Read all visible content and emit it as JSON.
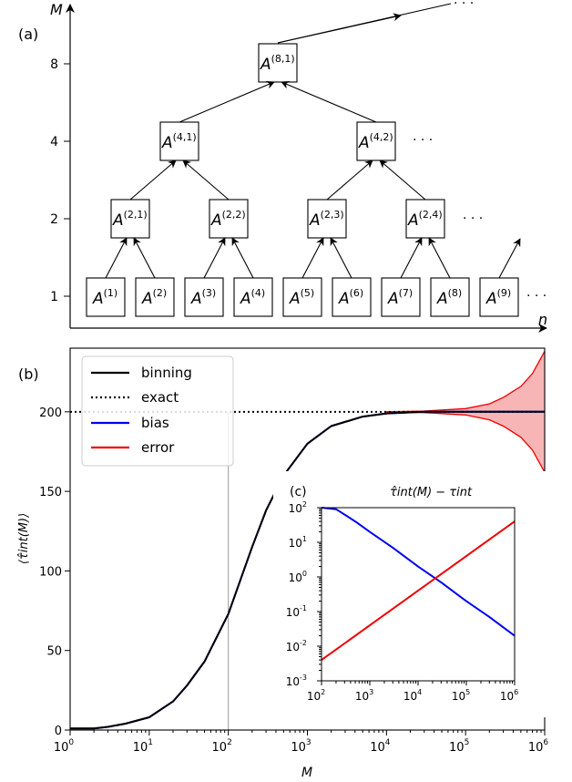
{
  "panel_a": {
    "label": "(a)",
    "y_axis_label": "M",
    "x_axis_label": "n",
    "y_ticks": [
      "1",
      "2",
      "4",
      "8"
    ],
    "ellipsis": "· · ·",
    "boxes": [
      {
        "base": "A",
        "sup": "(1)"
      },
      {
        "base": "A",
        "sup": "(2)"
      },
      {
        "base": "A",
        "sup": "(3)"
      },
      {
        "base": "A",
        "sup": "(4)"
      },
      {
        "base": "A",
        "sup": "(5)"
      },
      {
        "base": "A",
        "sup": "(6)"
      },
      {
        "base": "A",
        "sup": "(7)"
      },
      {
        "base": "A",
        "sup": "(8)"
      },
      {
        "base": "A",
        "sup": "(9)"
      },
      {
        "base": "A",
        "sup": "(2,1)"
      },
      {
        "base": "A",
        "sup": "(2,2)"
      },
      {
        "base": "A",
        "sup": "(2,3)"
      },
      {
        "base": "A",
        "sup": "(2,4)"
      },
      {
        "base": "A",
        "sup": "(4,1)"
      },
      {
        "base": "A",
        "sup": "(4,2)"
      },
      {
        "base": "A",
        "sup": "(8,1)"
      }
    ]
  },
  "panel_b": {
    "label": "(b)",
    "legend": [
      "binning",
      "exact",
      "bias",
      "error"
    ],
    "colors": {
      "binning": "#000000",
      "exact": "#000000",
      "bias": "#0000ee",
      "error": "#ee0000",
      "error_fill": "#f7b5b5"
    }
  },
  "panel_c": {
    "label": "(c)"
  },
  "chart_data": [
    {
      "type": "line",
      "panel": "b",
      "xlabel": "M",
      "ylabel": "⟨τ̂int(M)⟩",
      "xscale": "log",
      "xlim": [
        1,
        1000000
      ],
      "ylim": [
        0,
        240
      ],
      "x_ticks": [
        "10^0",
        "10^1",
        "10^2",
        "10^3",
        "10^4",
        "10^5",
        "10^6"
      ],
      "y_ticks": [
        "0",
        "50",
        "100",
        "150",
        "200"
      ],
      "reference_vline_x": 100,
      "series": [
        {
          "name": "binning",
          "x": [
            1,
            2,
            3,
            5,
            10,
            20,
            30,
            50,
            100,
            200,
            300,
            500,
            1000,
            2000,
            5000,
            10000,
            30000,
            100000,
            1000000
          ],
          "y": [
            1,
            1,
            2,
            4,
            8,
            18,
            28,
            43,
            73,
            115,
            138,
            160,
            180,
            191,
            197,
            199,
            200,
            200,
            200
          ]
        },
        {
          "name": "exact",
          "x": [
            1,
            1000000
          ],
          "y": [
            200,
            200
          ]
        },
        {
          "name": "bias",
          "x": [
            1,
            2,
            3,
            5,
            10,
            20,
            30,
            50,
            100,
            200,
            300,
            500,
            1000,
            2000,
            5000,
            10000,
            30000,
            100000,
            1000000
          ],
          "y": [
            1,
            1,
            2,
            4,
            8,
            18,
            28,
            43,
            73,
            115,
            138,
            160,
            180,
            191,
            197,
            199,
            200,
            200,
            200
          ]
        },
        {
          "name": "error",
          "x": [
            10000,
            30000,
            100000,
            200000,
            300000,
            500000,
            700000,
            1000000
          ],
          "upper": [
            200,
            200.5,
            202,
            205,
            209,
            216,
            224,
            238
          ],
          "lower": [
            200,
            199.5,
            198,
            195,
            191,
            184,
            176,
            162
          ]
        }
      ]
    },
    {
      "type": "line",
      "panel": "c",
      "title": "τ̂int(M) − τint",
      "xscale": "log",
      "yscale": "log",
      "xlim": [
        100,
        1000000
      ],
      "ylim": [
        0.001,
        100
      ],
      "x_ticks": [
        "10^2",
        "10^3",
        "10^4",
        "10^5",
        "10^6"
      ],
      "y_ticks": [
        "10^-3",
        "10^-2",
        "10^-1",
        "10^0",
        "10^1",
        "10^2"
      ],
      "series": [
        {
          "name": "bias",
          "x": [
            100,
            200,
            500,
            1000,
            3000,
            10000,
            30000,
            100000,
            300000,
            1000000
          ],
          "y": [
            100,
            90,
            40,
            20,
            7,
            2,
            0.7,
            0.2,
            0.07,
            0.02
          ]
        },
        {
          "name": "error",
          "x": [
            100,
            1000,
            10000,
            100000,
            1000000
          ],
          "y": [
            0.004,
            0.04,
            0.4,
            4,
            40
          ]
        }
      ]
    }
  ]
}
